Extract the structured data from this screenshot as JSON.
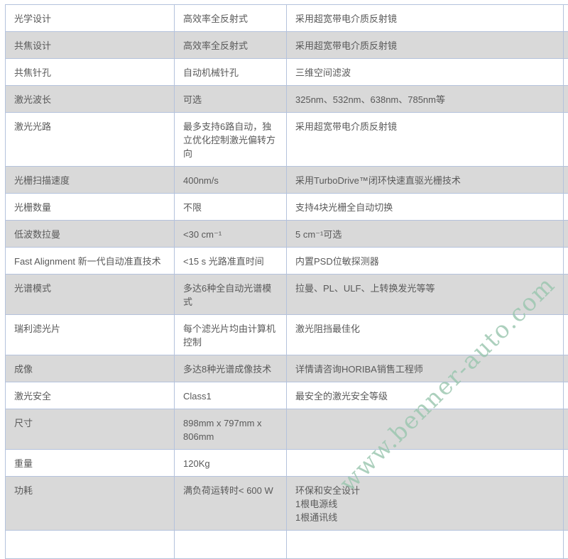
{
  "watermark": {
    "text": "www.benner-auto.com",
    "color": "#97c4ac"
  },
  "colors": {
    "row_alt_gray": "#d9d9d9",
    "table_border": "#b4c2dc",
    "cell_text": "#595959",
    "background": "#ffffff"
  },
  "table": {
    "rows": [
      {
        "c1": "光学设计",
        "c2": "高效率全反射式",
        "c3": "采用超宽带电介质反射镜"
      },
      {
        "c1": "共焦设计",
        "c2": "高效率全反射式",
        "c3": "采用超宽带电介质反射镜"
      },
      {
        "c1": "共焦针孔",
        "c2": "自动机械针孔",
        "c3": "三维空间滤波"
      },
      {
        "c1": "激光波长",
        "c2": "可选",
        "c3": "325nm、532nm、638nm、785nm等"
      },
      {
        "c1": "激光光路",
        "c2": "最多支持6路自动，独立优化控制激光偏转方向",
        "c3": "采用超宽带电介质反射镜"
      },
      {
        "c1": "光栅扫描速度",
        "c2": "400nm/s",
        "c3": "采用TurboDrive™闭环快速直驱光栅技术"
      },
      {
        "c1": "光栅数量",
        "c2": "不限",
        "c3": "支持4块光栅全自动切换"
      },
      {
        "c1": "低波数拉曼",
        "c2": "<30 cm⁻¹",
        "c3": "5 cm⁻¹可选"
      },
      {
        "c1": "Fast Alignment 新一代自动准直技术",
        "c2": "<15 s 光路准直时间",
        "c3": "内置PSD位敏探测器"
      },
      {
        "c1": "光谱模式",
        "c2": "多达6种全自动光谱模式",
        "c3": "拉曼、PL、ULF、上转换发光等等"
      },
      {
        "c1": "瑞利滤光片",
        "c2": "每个滤光片均由计算机控制",
        "c3": "激光阻挡最佳化"
      },
      {
        "c1": "成像",
        "c2": "多达8种光谱成像技术",
        "c3": "详情请咨询HORIBA销售工程师"
      },
      {
        "c1": "激光安全",
        "c2": "Class1",
        "c3": "最安全的激光安全等级"
      },
      {
        "c1": "尺寸",
        "c2": "898mm x 797mm x 806mm",
        "c3": ""
      },
      {
        "c1": "重量",
        "c2": "120Kg",
        "c3": ""
      },
      {
        "c1": "功耗",
        "c2": "满负荷运转时< 600 W",
        "c3": "环保和安全设计\n1根电源线\n1根通讯线"
      },
      {
        "c1": "",
        "c2": "",
        "c3": ""
      }
    ]
  }
}
